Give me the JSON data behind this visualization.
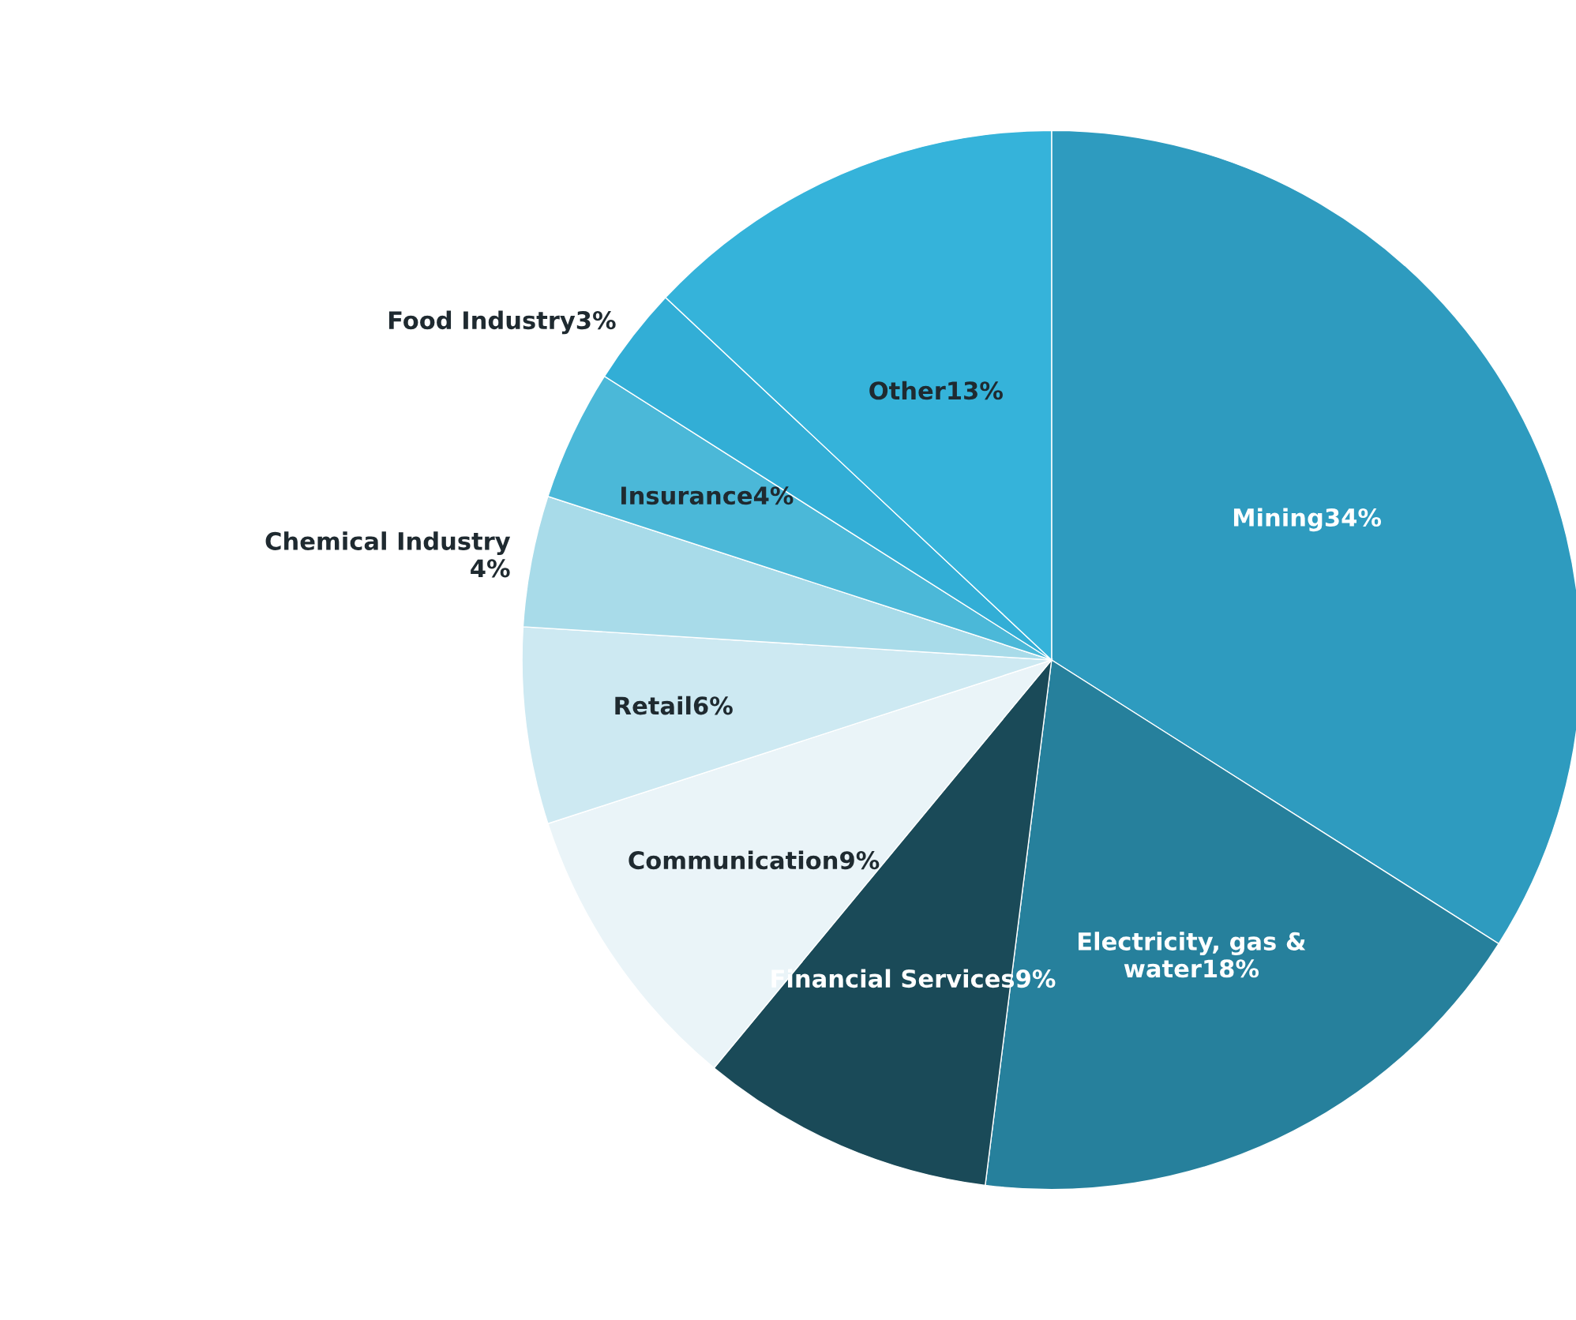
{
  "chart_data": {
    "type": "pie",
    "categories": [
      "Mining",
      "Electricity, gas &\nwater",
      "Financial Services",
      "Communication",
      "Retail",
      "Chemical Industry\n",
      "Insurance",
      "Food Industry",
      "Other"
    ],
    "values": [
      34,
      18,
      9,
      9,
      6,
      4,
      4,
      3,
      13
    ],
    "value_labels": [
      "34%",
      "18%",
      "9%",
      "9%",
      "6%",
      "4%",
      "4%",
      "3%",
      "13%"
    ],
    "colors": [
      "#2e9bbf",
      "#26809c",
      "#1a4a58",
      "#eaf4f8",
      "#cde9f2",
      "#a8dbe9",
      "#4bb8d8",
      "#32aed6",
      "#35b3da"
    ],
    "legend": false
  }
}
